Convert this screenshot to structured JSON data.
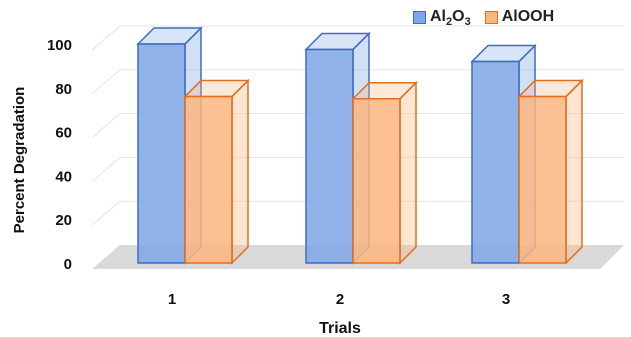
{
  "chart_data": {
    "type": "bar",
    "categories": [
      "1",
      "2",
      "3"
    ],
    "xlabel": "Trials",
    "ylabel": "Percent Degradation",
    "ylim": [
      0,
      100
    ],
    "yticks": [
      0,
      20,
      40,
      60,
      80,
      100
    ],
    "grid": true,
    "legend_position": "top-right",
    "series": [
      {
        "name": "Al2O3",
        "name_parts": [
          "Al",
          "2",
          "O",
          "3"
        ],
        "values": [
          100,
          97.5,
          92
        ],
        "color": "#7fa6e6",
        "edge": "#3d6cc4"
      },
      {
        "name": "AlOOH",
        "values": [
          76,
          75,
          76
        ],
        "color": "#fbb57f",
        "edge": "#e06f1f"
      }
    ]
  }
}
